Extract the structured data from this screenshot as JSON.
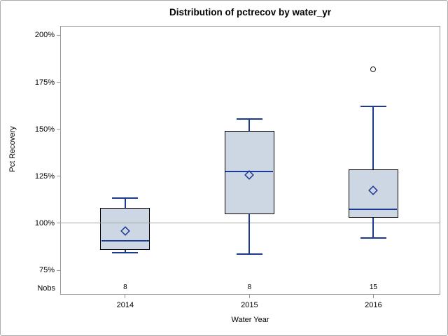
{
  "figure": {
    "title": "Distribution of pctrecov by water_yr",
    "y_axis_label": "Pct Recovery",
    "x_axis_label": "Water Year",
    "nobs_label": "Nobs"
  },
  "colors": {
    "box_fill": "#cdd6e3",
    "box_border": "#000000",
    "blue_line": "#1b3a94",
    "axis_frame": "#999999",
    "reference_line": "#a8a8a8",
    "outlier_stroke": "#1a1a1a",
    "text": "#000000"
  },
  "chart_data": {
    "type": "boxplot",
    "title": "Distribution of pctrecov by water_yr",
    "xlabel": "Water Year",
    "ylabel": "Pct Recovery",
    "categories": [
      "2014",
      "2015",
      "2016"
    ],
    "nobs": [
      "8",
      "8",
      "15"
    ],
    "y_ticks": [
      {
        "value": 75,
        "label": "75%"
      },
      {
        "value": 100,
        "label": "100%"
      },
      {
        "value": 125,
        "label": "125%"
      },
      {
        "value": 150,
        "label": "150%"
      },
      {
        "value": 175,
        "label": "175%"
      },
      {
        "value": 200,
        "label": "200%"
      }
    ],
    "ylim": [
      62,
      205
    ],
    "reference_line": 100,
    "grid": false,
    "legend": "none",
    "series": [
      {
        "category": "2014",
        "n": 8,
        "whisker_low": 84.5,
        "q1": 86,
        "median": 90.5,
        "mean": 96,
        "q3": 108,
        "whisker_high": 113.5,
        "outliers": []
      },
      {
        "category": "2015",
        "n": 8,
        "whisker_low": 83.5,
        "q1": 105,
        "median": 127.5,
        "mean": 125.5,
        "q3": 149,
        "whisker_high": 155.5,
        "outliers": []
      },
      {
        "category": "2016",
        "n": 15,
        "whisker_low": 92,
        "q1": 103,
        "median": 107.5,
        "mean": 117.5,
        "q3": 128.5,
        "whisker_high": 162,
        "outliers": [
          182
        ]
      }
    ]
  }
}
